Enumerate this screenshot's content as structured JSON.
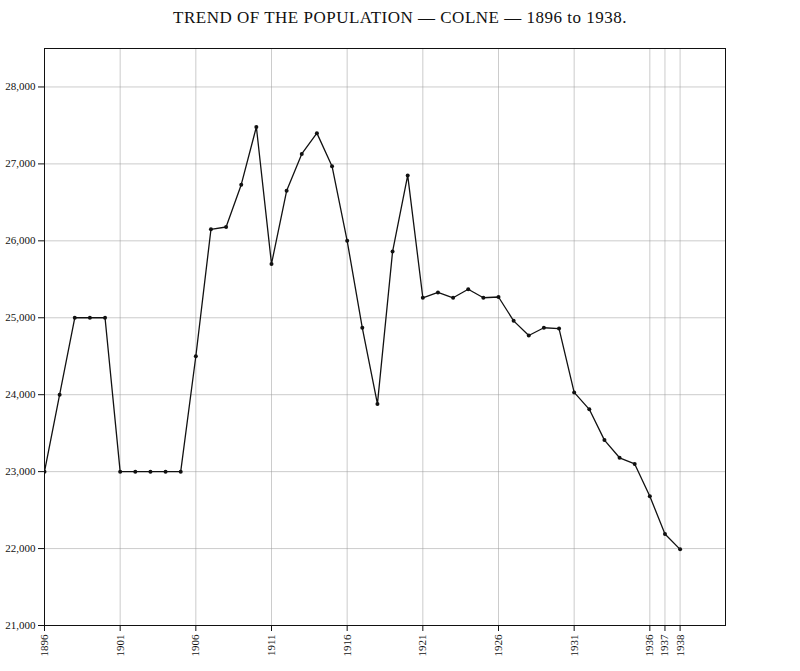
{
  "chart_data": {
    "type": "line",
    "title": "TREND OF THE POPULATION — COLNE — 1896 to 1938.",
    "x": [
      1896,
      1897,
      1898,
      1899,
      1900,
      1901,
      1902,
      1903,
      1904,
      1905,
      1906,
      1907,
      1908,
      1909,
      1910,
      1911,
      1912,
      1913,
      1914,
      1915,
      1916,
      1917,
      1918,
      1919,
      1920,
      1921,
      1922,
      1923,
      1924,
      1925,
      1926,
      1927,
      1928,
      1929,
      1930,
      1931,
      1932,
      1933,
      1934,
      1935,
      1936,
      1937,
      1938
    ],
    "values": [
      23000,
      24000,
      25000,
      25000,
      25000,
      23000,
      23000,
      23000,
      23000,
      23000,
      24500,
      26150,
      26180,
      26730,
      27480,
      25700,
      26650,
      27130,
      27400,
      26970,
      26000,
      24870,
      23880,
      25860,
      26850,
      25260,
      25330,
      25260,
      25370,
      25260,
      25270,
      24960,
      24770,
      24870,
      24860,
      24030,
      23810,
      23410,
      23180,
      23100,
      22680,
      22190,
      21990
    ],
    "color": "#111111",
    "marker": "circle",
    "xlim": [
      1896,
      1941
    ],
    "xticks": [
      1896,
      1901,
      1906,
      1911,
      1916,
      1921,
      1926,
      1931,
      1936,
      1937,
      1938
    ],
    "ylim": [
      21000,
      28500
    ],
    "yticks": [
      {
        "value": 21000,
        "label": "21,000"
      },
      {
        "value": 22000,
        "label": "22,000"
      },
      {
        "value": 23000,
        "label": "23,000"
      },
      {
        "value": 24000,
        "label": "24,000"
      },
      {
        "value": 25000,
        "label": "25,000"
      },
      {
        "value": 26000,
        "label": "26,000"
      },
      {
        "value": 27000,
        "label": "27,000"
      },
      {
        "value": 28000,
        "label": "28,000"
      }
    ],
    "grid": true
  }
}
